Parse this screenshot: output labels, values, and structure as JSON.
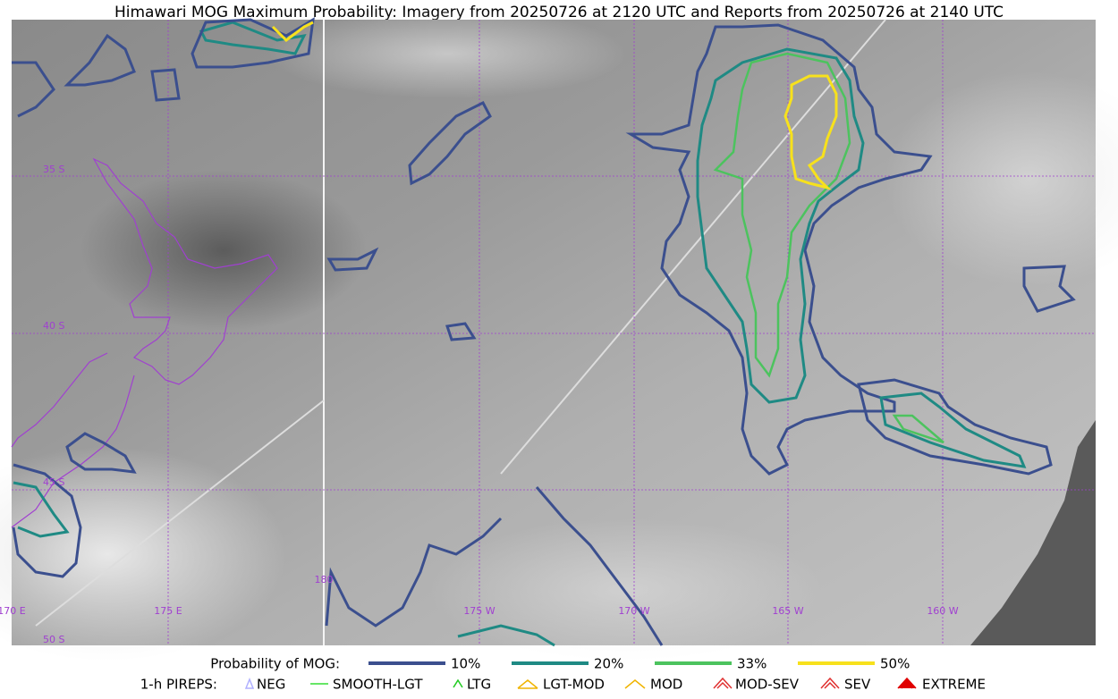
{
  "title": "Himawari MOG Maximum Probability: Imagery from 20250726 at 2120 UTC and Reports from 20250726 at 2140 UTC",
  "lat_labels": [
    "35 S",
    "40 S",
    "45 S",
    "50 S"
  ],
  "lon_labels": [
    "170 E",
    "175 E",
    "180",
    "175 W",
    "170 W",
    "165 W",
    "160 W"
  ],
  "legend": {
    "probability": {
      "label": "Probability of MOG:",
      "items": [
        {
          "label": "10%",
          "color": "#3b4f8e"
        },
        {
          "label": "20%",
          "color": "#1f8a84"
        },
        {
          "label": "33%",
          "color": "#4cc35e"
        },
        {
          "label": "50%",
          "color": "#f7e11c"
        }
      ]
    },
    "pireps": {
      "label": "1-h PIREPS:",
      "items": [
        {
          "label": "NEG",
          "color": "#b0b0ff"
        },
        {
          "label": "SMOOTH-LGT",
          "color": "#33dd33"
        },
        {
          "label": "LTG",
          "color": "#22cc22"
        },
        {
          "label": "LGT-MOD",
          "color": "#f0b400"
        },
        {
          "label": "MOD",
          "color": "#f0b400"
        },
        {
          "label": "MOD-SEV",
          "color": "#e03030"
        },
        {
          "label": "SEV",
          "color": "#e03030"
        },
        {
          "label": "EXTREME",
          "color": "#e00000"
        }
      ]
    }
  }
}
